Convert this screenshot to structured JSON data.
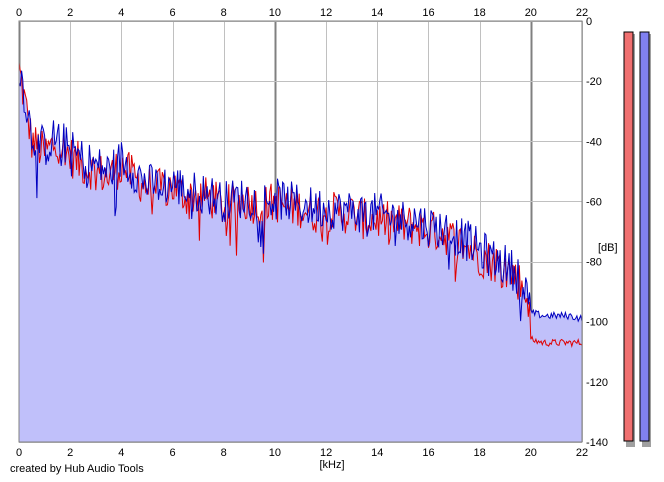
{
  "chart_data": {
    "type": "area",
    "title": "",
    "xlabel": "[kHz]",
    "ylabel": "[dB]",
    "xlim": [
      0,
      22
    ],
    "ylim": [
      -140,
      0
    ],
    "x_ticks": [
      "0",
      "2",
      "4",
      "6",
      "8",
      "10",
      "12",
      "14",
      "16",
      "18",
      "20",
      "22"
    ],
    "y_ticks": [
      "0",
      "-20",
      "-40",
      "-60",
      "-80",
      "-100",
      "-120",
      "-140"
    ],
    "grid": true,
    "colors": {
      "fill": "#c0c0fa",
      "left": "#e00000",
      "right": "#0000c0",
      "grid": "#c0c0c0",
      "major_grid": "#808080",
      "meter_left": "#f07070",
      "meter_right": "#8080f0"
    },
    "series": [
      {
        "x": [
          0,
          0.5,
          1,
          1.5,
          2,
          2.5,
          3,
          3.5,
          4,
          4.5,
          5,
          5.5,
          6,
          6.5,
          7,
          7.5,
          8,
          8.5,
          9,
          9.5,
          10,
          10.5,
          11,
          11.5,
          12,
          12.5,
          13,
          13.5,
          14,
          14.5,
          15,
          15.5,
          16,
          16.5,
          17,
          17.5,
          18,
          18.5,
          19,
          19.5,
          19.9,
          20,
          20.5,
          21,
          21.5,
          22
        ],
        "values": [
          -16,
          -40,
          -44,
          -40,
          -45,
          -48,
          -50,
          -52,
          -48,
          -52,
          -55,
          -56,
          -55,
          -58,
          -58,
          -59,
          -62,
          -60,
          -60,
          -62,
          -60,
          -62,
          -62,
          -64,
          -63,
          -64,
          -64,
          -66,
          -66,
          -67,
          -68,
          -68,
          -70,
          -70,
          -73,
          -75,
          -78,
          -80,
          -82,
          -86,
          -92,
          -106,
          -107,
          -107,
          -107,
          -107
        ]
      },
      {
        "x": [
          0,
          0.5,
          1,
          1.5,
          2,
          2.5,
          3,
          3.5,
          4,
          4.5,
          5,
          5.5,
          6,
          6.5,
          7,
          7.5,
          8,
          8.5,
          9,
          9.5,
          10,
          10.5,
          11,
          11.5,
          12,
          12.5,
          13,
          13.5,
          14,
          14.5,
          15,
          15.5,
          16,
          16.5,
          17,
          17.5,
          18,
          18.5,
          19,
          19.5,
          19.9,
          20,
          20.5,
          21,
          21.5,
          22
        ],
        "values": [
          -14,
          -38,
          -42,
          -38,
          -43,
          -46,
          -48,
          -50,
          -46,
          -50,
          -54,
          -55,
          -54,
          -56,
          -57,
          -58,
          -60,
          -59,
          -59,
          -60,
          -59,
          -60,
          -61,
          -62,
          -62,
          -63,
          -63,
          -64,
          -64,
          -65,
          -66,
          -66,
          -68,
          -69,
          -71,
          -73,
          -76,
          -79,
          -81,
          -84,
          -90,
          -97,
          -98,
          -98,
          -98,
          -99
        ]
      }
    ]
  },
  "footer": {
    "credit": "created by Hub Audio Tools"
  }
}
